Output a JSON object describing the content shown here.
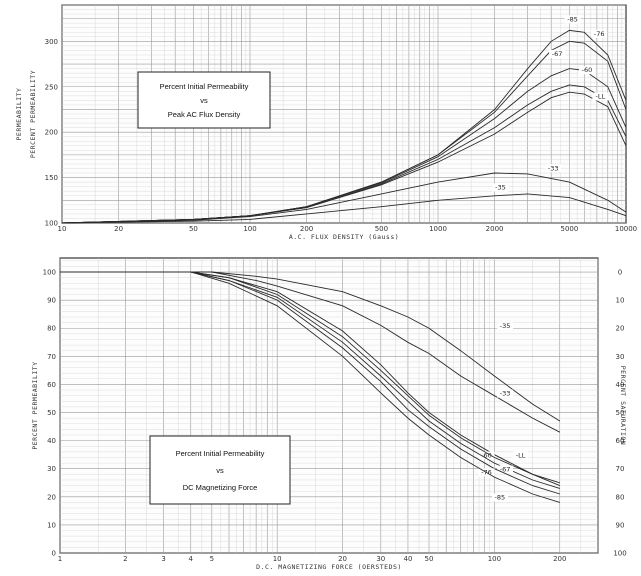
{
  "chart_data": [
    {
      "type": "line",
      "title_lines": [
        "Percent Initial Permeability",
        "vs",
        "Peak AC Flux Density"
      ],
      "xlabel": "A.C. FLUX DENSITY (Gauss)",
      "ylabel_outer": "PERMEABILITY",
      "ylabel_inner": "PERCENT PERMEABILITY",
      "x_scale": "log",
      "xlim": [
        10,
        10000
      ],
      "ylim": [
        100,
        340
      ],
      "x_ticks": [
        {
          "v": 10,
          "label": "10"
        },
        {
          "v": 20,
          "label": "20"
        },
        {
          "v": 50,
          "label": "50"
        },
        {
          "v": 100,
          "label": "100"
        },
        {
          "v": 200,
          "label": "200"
        },
        {
          "v": 500,
          "label": "500"
        },
        {
          "v": 1000,
          "label": "1000"
        },
        {
          "v": 2000,
          "label": "2000"
        },
        {
          "v": 5000,
          "label": "5000"
        },
        {
          "v": 10000,
          "label": "10000"
        }
      ],
      "y_ticks": [
        {
          "v": 100,
          "label": "100"
        },
        {
          "v": 150,
          "label": "150"
        },
        {
          "v": 200,
          "label": "200"
        },
        {
          "v": 250,
          "label": "250"
        },
        {
          "v": 300,
          "label": "300"
        }
      ],
      "series": [
        {
          "name": "-85",
          "label_at": [
            5200,
            322
          ],
          "points": [
            [
              10,
              100
            ],
            [
              50,
              104
            ],
            [
              100,
              108
            ],
            [
              200,
              118
            ],
            [
              500,
              145
            ],
            [
              1000,
              175
            ],
            [
              2000,
              225
            ],
            [
              3000,
              270
            ],
            [
              4000,
              300
            ],
            [
              5000,
              312
            ],
            [
              6000,
              310
            ],
            [
              8000,
              285
            ],
            [
              10000,
              235
            ]
          ]
        },
        {
          "name": "-76",
          "label_at": [
            7200,
            306
          ],
          "points": [
            [
              10,
              100
            ],
            [
              50,
              104
            ],
            [
              100,
              108
            ],
            [
              200,
              118
            ],
            [
              500,
              145
            ],
            [
              1000,
              175
            ],
            [
              2000,
              222
            ],
            [
              3000,
              262
            ],
            [
              4000,
              290
            ],
            [
              5000,
              300
            ],
            [
              6000,
              298
            ],
            [
              8000,
              278
            ],
            [
              10000,
              225
            ]
          ]
        },
        {
          "name": "-67",
          "label_at": [
            4300,
            284
          ],
          "points": [
            [
              10,
              100
            ],
            [
              50,
              104
            ],
            [
              100,
              108
            ],
            [
              200,
              118
            ],
            [
              500,
              144
            ],
            [
              1000,
              173
            ],
            [
              2000,
              215
            ],
            [
              3000,
              245
            ],
            [
              4000,
              262
            ],
            [
              5000,
              270
            ],
            [
              6000,
              268
            ],
            [
              8000,
              250
            ],
            [
              10000,
              205
            ]
          ]
        },
        {
          "name": "-60",
          "label_at": [
            6200,
            266
          ],
          "points": [
            [
              10,
              100
            ],
            [
              50,
              104
            ],
            [
              100,
              108
            ],
            [
              200,
              117
            ],
            [
              500,
              143
            ],
            [
              1000,
              170
            ],
            [
              2000,
              205
            ],
            [
              3000,
              230
            ],
            [
              4000,
              245
            ],
            [
              5000,
              252
            ],
            [
              6000,
              250
            ],
            [
              8000,
              235
            ],
            [
              10000,
              195
            ]
          ]
        },
        {
          "name": "-LL",
          "label_at": [
            7300,
            237
          ],
          "points": [
            [
              10,
              100
            ],
            [
              50,
              104
            ],
            [
              100,
              108
            ],
            [
              200,
              117
            ],
            [
              500,
              142
            ],
            [
              1000,
              167
            ],
            [
              2000,
              198
            ],
            [
              3000,
              222
            ],
            [
              4000,
              238
            ],
            [
              5000,
              244
            ],
            [
              6000,
              242
            ],
            [
              8000,
              228
            ],
            [
              10000,
              185
            ]
          ]
        },
        {
          "name": "-33",
          "label_at": [
            4100,
            158
          ],
          "points": [
            [
              10,
              100
            ],
            [
              50,
              103
            ],
            [
              100,
              107
            ],
            [
              200,
              115
            ],
            [
              500,
              132
            ],
            [
              1000,
              145
            ],
            [
              2000,
              155
            ],
            [
              3000,
              154
            ],
            [
              5000,
              145
            ],
            [
              8000,
              125
            ],
            [
              10000,
              112
            ]
          ]
        },
        {
          "name": "-35",
          "label_at": [
            2150,
            137
          ],
          "points": [
            [
              10,
              100
            ],
            [
              50,
              102
            ],
            [
              100,
              104
            ],
            [
              200,
              110
            ],
            [
              500,
              118
            ],
            [
              1000,
              125
            ],
            [
              2000,
              130
            ],
            [
              3000,
              132
            ],
            [
              5000,
              128
            ],
            [
              8000,
              115
            ],
            [
              10000,
              108
            ]
          ]
        }
      ]
    },
    {
      "type": "line",
      "title_lines": [
        "Percent Initial Permeability",
        "vs",
        "DC Magnetizing Force"
      ],
      "xlabel": "D.C. MAGNETIZING FORCE (OERSTEDS)",
      "ylabel_left": "PERCENT PERMEABILITY",
      "ylabel_right": "PERCENT SATURATION",
      "x_scale": "log",
      "xlim": [
        1,
        300
      ],
      "ylim": [
        0,
        105
      ],
      "x_ticks": [
        {
          "v": 1,
          "label": "1"
        },
        {
          "v": 2,
          "label": "2"
        },
        {
          "v": 3,
          "label": "3"
        },
        {
          "v": 4,
          "label": "4"
        },
        {
          "v": 5,
          "label": "5"
        },
        {
          "v": 10,
          "label": "10"
        },
        {
          "v": 20,
          "label": "20"
        },
        {
          "v": 30,
          "label": "30"
        },
        {
          "v": 40,
          "label": "40"
        },
        {
          "v": 50,
          "label": "50"
        },
        {
          "v": 100,
          "label": "100"
        },
        {
          "v": 200,
          "label": "200"
        }
      ],
      "y_ticks": [
        {
          "v": 0,
          "label": "0"
        },
        {
          "v": 10,
          "label": "10"
        },
        {
          "v": 20,
          "label": "20"
        },
        {
          "v": 30,
          "label": "30"
        },
        {
          "v": 40,
          "label": "40"
        },
        {
          "v": 50,
          "label": "50"
        },
        {
          "v": 60,
          "label": "60"
        },
        {
          "v": 70,
          "label": "70"
        },
        {
          "v": 80,
          "label": "80"
        },
        {
          "v": 90,
          "label": "90"
        },
        {
          "v": 100,
          "label": "100"
        }
      ],
      "right_ticks": [
        {
          "v": 100,
          "label": "0"
        },
        {
          "v": 90,
          "label": "10"
        },
        {
          "v": 80,
          "label": "20"
        },
        {
          "v": 70,
          "label": "30"
        },
        {
          "v": 60,
          "label": "40"
        },
        {
          "v": 50,
          "label": "50"
        },
        {
          "v": 40,
          "label": "60"
        },
        {
          "v": 30,
          "label": "70"
        },
        {
          "v": 20,
          "label": "80"
        },
        {
          "v": 10,
          "label": "90"
        },
        {
          "v": 0,
          "label": "100"
        }
      ],
      "series": [
        {
          "name": "-35",
          "label_at": [
            112,
            80
          ],
          "points": [
            [
              1,
              100
            ],
            [
              5,
              100
            ],
            [
              8,
              98.5
            ],
            [
              10,
              97.5
            ],
            [
              20,
              93
            ],
            [
              30,
              88
            ],
            [
              40,
              84
            ],
            [
              50,
              80
            ],
            [
              70,
              72
            ],
            [
              100,
              63
            ],
            [
              150,
              53
            ],
            [
              200,
              47
            ]
          ]
        },
        {
          "name": "-33",
          "label_at": [
            112,
            56
          ],
          "points": [
            [
              1,
              100
            ],
            [
              5,
              100
            ],
            [
              8,
              97
            ],
            [
              10,
              95
            ],
            [
              20,
              88
            ],
            [
              30,
              81
            ],
            [
              40,
              75
            ],
            [
              50,
              71
            ],
            [
              70,
              63
            ],
            [
              100,
              56
            ],
            [
              150,
              48
            ],
            [
              200,
              43
            ]
          ]
        },
        {
          "name": "-60",
          "label_at": [
            92,
            34
          ],
          "points": [
            [
              1,
              100
            ],
            [
              4,
              100
            ],
            [
              6,
              98
            ],
            [
              10,
              93
            ],
            [
              20,
              79
            ],
            [
              30,
              67
            ],
            [
              40,
              57
            ],
            [
              50,
              50
            ],
            [
              70,
              42
            ],
            [
              100,
              35
            ],
            [
              150,
              28
            ],
            [
              200,
              25
            ]
          ]
        },
        {
          "name": "-LL",
          "label_at": [
            132,
            34
          ],
          "points": [
            [
              1,
              100
            ],
            [
              4,
              100
            ],
            [
              6,
              98
            ],
            [
              10,
              92
            ],
            [
              20,
              77
            ],
            [
              30,
              65
            ],
            [
              40,
              56
            ],
            [
              50,
              49
            ],
            [
              70,
              41
            ],
            [
              100,
              34
            ],
            [
              150,
              28
            ],
            [
              200,
              24
            ]
          ]
        },
        {
          "name": "-67",
          "label_at": [
            112,
            29
          ],
          "points": [
            [
              1,
              100
            ],
            [
              4,
              100
            ],
            [
              6,
              97
            ],
            [
              10,
              91
            ],
            [
              20,
              75
            ],
            [
              30,
              63
            ],
            [
              40,
              54
            ],
            [
              50,
              47
            ],
            [
              70,
              39
            ],
            [
              100,
              32
            ],
            [
              150,
              26
            ],
            [
              200,
              23
            ]
          ]
        },
        {
          "name": "-76",
          "label_at": [
            92,
            28
          ],
          "points": [
            [
              1,
              100
            ],
            [
              4,
              100
            ],
            [
              6,
              97
            ],
            [
              10,
              90
            ],
            [
              20,
              73
            ],
            [
              30,
              61
            ],
            [
              40,
              51
            ],
            [
              50,
              45
            ],
            [
              70,
              37
            ],
            [
              100,
              30
            ],
            [
              150,
              24
            ],
            [
              200,
              21
            ]
          ]
        },
        {
          "name": "-85",
          "label_at": [
            106,
            19
          ],
          "points": [
            [
              1,
              100
            ],
            [
              4,
              100
            ],
            [
              6,
              96
            ],
            [
              10,
              88
            ],
            [
              20,
              70
            ],
            [
              30,
              57
            ],
            [
              40,
              48
            ],
            [
              50,
              42
            ],
            [
              70,
              34
            ],
            [
              100,
              27
            ],
            [
              150,
              21
            ],
            [
              200,
              18
            ]
          ]
        }
      ]
    }
  ]
}
